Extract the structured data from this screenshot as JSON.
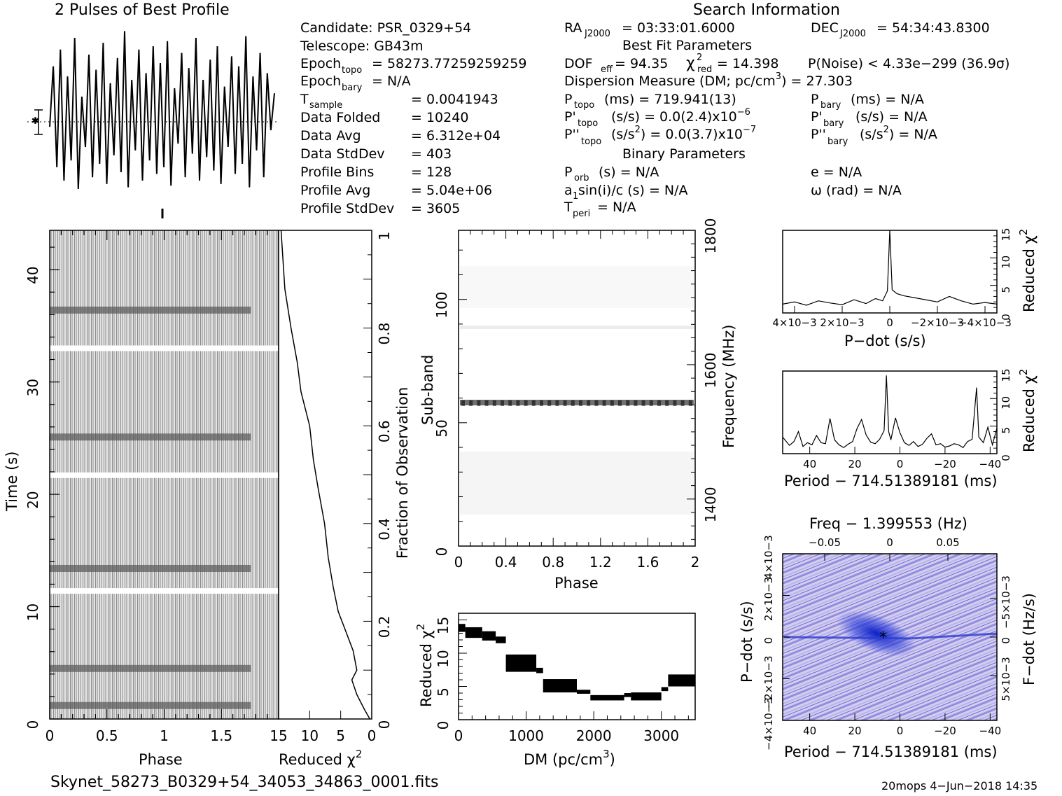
{
  "top": {
    "profile_title": "2 Pulses of Best Profile",
    "search_title": "Search Information"
  },
  "info_left": {
    "candidate": "Candidate:  PSR_0329+54",
    "telescope": "Telescope:  GB43m",
    "epoch_topo_label": "Epoch",
    "epoch_topo_sub": "topo",
    "epoch_topo_value": "= 58273.77259259259",
    "epoch_bary_label": "Epoch",
    "epoch_bary_sub": "bary",
    "epoch_bary_value": "= N/A",
    "t_sample_label": "T",
    "t_sample_sub": "sample",
    "t_sample_value": "=  0.0041943",
    "data_folded_label": "Data Folded",
    "data_folded_value": "=  10240",
    "data_avg_label": "Data Avg",
    "data_avg_value": "=  6.312e+04",
    "data_stddev_label": "Data StdDev",
    "data_stddev_value": "=  403",
    "profile_bins_label": "Profile Bins",
    "profile_bins_value": "=  128",
    "profile_avg_label": "Profile Avg",
    "profile_avg_value": "=  5.04e+06",
    "profile_stddev_label": "Profile StdDev",
    "profile_stddev_value": "=  3605"
  },
  "info_mid": {
    "ra_label": "RA",
    "ra_sub": "J2000",
    "ra_value": "= 03:33:01.6000",
    "best_fit_title": "Best Fit Parameters",
    "dof_label": "DOF",
    "dof_sub": "eff",
    "dof_value": "= 94.35",
    "chi_label": "χ",
    "chi_sup": "2",
    "chi_sub": "red",
    "chi_value": "= 14.398",
    "pnoise": "P(Noise) < 4.33e−299  (36.9σ)",
    "dm_line": "Dispersion Measure (DM; pc/cm",
    "dm_sup": "3",
    "dm_tail": ") = 27.303",
    "ptopo_label": "P",
    "ptopo_sub": "topo",
    "ptopo_value": "(ms) =  719.941(13)",
    "pdtopo_label": "P'",
    "pdtopo_sub": "topo",
    "pdtopo_value": "(s/s) = 0.0(2.4)x10",
    "pdtopo_exp": "−6",
    "pddtopo_label": "P''",
    "pddtopo_sub": "topo",
    "pddtopo_value": "(s/s",
    "pddtopo_sup": "2",
    "pddtopo_tail": ") = 0.0(3.7)x10",
    "pddtopo_exp": "−7",
    "binary_title": "Binary Parameters",
    "porb_label": "P",
    "porb_sub": "orb",
    "porb_value": "(s) = N/A",
    "a1_label": "a",
    "a1_sub": "1",
    "a1_value": "sin(i)/c (s) = N/A",
    "tperi_label": "T",
    "tperi_sub": "peri",
    "tperi_value": "= N/A"
  },
  "info_right": {
    "dec_label": "DEC",
    "dec_sub": "J2000",
    "dec_value": "= 54:34:43.8300",
    "pbary_label": "P",
    "pbary_sub": "bary",
    "pbary_value": "(ms) = N/A",
    "pdbary_label": "P'",
    "pdbary_sub": "bary",
    "pdbary_value": "(s/s) = N/A",
    "pddbary_label": "P''",
    "pddbary_sub": "bary",
    "pddbary_value": "(s/s",
    "pddbary_sup": "2",
    "pddbary_tail": ") = N/A",
    "e_value": "e = N/A",
    "omega_value": "ω (rad) = N/A"
  },
  "footer": {
    "filename": "Skynet_58273_B0329+54_34053_34863_0001.fits",
    "stamp": "20mops  4−Jun−2018 14:35"
  },
  "colors": {
    "ink": "#000000",
    "greyscale_dark": "#202020",
    "pf_blue": "#3344dd",
    "pf_light": "#d8c8f0"
  },
  "chart_data": [
    {
      "type": "line",
      "title": "2 Pulses of Best Profile",
      "xlabel": "",
      "ylabel": "",
      "ylim": [
        0,
        1
      ],
      "note": "pulse profile, two rotations",
      "values": [
        0.42,
        0.78,
        0.18,
        0.88,
        0.1,
        0.72,
        0.22,
        0.95,
        0.05,
        0.6,
        0.3,
        0.85,
        0.12,
        0.76,
        0.2,
        0.92,
        0.08,
        0.68,
        0.25,
        0.83,
        0.15,
        0.99,
        0.06,
        0.7,
        0.28,
        0.88,
        0.1,
        0.74,
        0.22,
        0.9,
        0.14,
        0.8,
        0.18,
        0.93,
        0.07,
        0.65,
        0.32,
        0.86,
        0.12,
        0.77,
        0.26,
        0.95,
        0.1,
        0.7,
        0.24,
        0.82,
        0.16,
        0.9,
        0.08,
        0.66,
        0.3,
        0.84,
        0.14,
        0.78,
        0.2,
        0.96,
        0.06,
        0.72,
        0.28,
        0.86,
        0.12,
        0.74,
        0.4,
        0.62
      ]
    },
    {
      "type": "heatmap",
      "name": "time-phase",
      "xlabel": "Phase",
      "ylabel": "Time (s)",
      "xlim": [
        0,
        2
      ],
      "ylim": [
        0,
        43.5
      ],
      "x_ticks": [
        "0",
        "0.5",
        "1",
        "1.5"
      ],
      "y_ticks": [
        "0",
        "10",
        "20",
        "30",
        "40"
      ],
      "gaps_time_s": [
        11.4,
        21.7,
        33.0
      ],
      "dark_rows_time_s": [
        1.2,
        4.5,
        13.4,
        25.1,
        36.4
      ]
    },
    {
      "type": "line",
      "name": "cumulative reduced chi2",
      "xlabel": "Reduced χ2",
      "ylabel": "Fraction of Observation",
      "xlim": [
        15,
        0
      ],
      "ylim": [
        0,
        1
      ],
      "x_ticks": [
        "15",
        "10",
        "5",
        "0"
      ],
      "y_ticks": [
        "0.2",
        "0.4",
        "0.6",
        "0.8",
        "1"
      ],
      "x": [
        0.3,
        1.2,
        2.4,
        3.2,
        2.4,
        3.0,
        4.2,
        5.4,
        6.2,
        7.0,
        7.6,
        8.6,
        9.4,
        10.0,
        11.4,
        12.0,
        13.0,
        14.0,
        14.3,
        14.6
      ],
      "y": [
        0.0,
        0.02,
        0.05,
        0.08,
        0.1,
        0.14,
        0.18,
        0.22,
        0.27,
        0.33,
        0.4,
        0.47,
        0.53,
        0.6,
        0.67,
        0.73,
        0.8,
        0.88,
        0.94,
        1.0
      ]
    },
    {
      "type": "heatmap",
      "name": "sub-band vs phase",
      "xlabel": "Phase",
      "ylabel": "Sub-band",
      "y2label": "Frequency (MHz)",
      "xlim": [
        0,
        2
      ],
      "ylim": [
        0,
        128
      ],
      "x_ticks": [
        "0",
        "0.4",
        "0.8",
        "1.2",
        "1.6",
        "2"
      ],
      "y_ticks": [
        "0",
        "50",
        "100"
      ],
      "y2_ticks": [
        "1400",
        "1600",
        "1800"
      ],
      "dark_band_subband": 58,
      "light_band_subband": 89
    },
    {
      "type": "line",
      "name": "DM vs reduced chi2",
      "xlabel": "DM (pc/cm3)",
      "ylabel": "Reduced χ2",
      "xlim": [
        0,
        3500
      ],
      "ylim": [
        0,
        16
      ],
      "x_ticks": [
        "0",
        "1000",
        "2000",
        "3000"
      ],
      "y_ticks": [
        "0",
        "5",
        "10",
        "15"
      ],
      "segments": [
        {
          "x0": 0,
          "x1": 100,
          "y": 13.8
        },
        {
          "x0": 100,
          "x1": 350,
          "y": 13.1
        },
        {
          "x0": 350,
          "x1": 550,
          "y": 12.6
        },
        {
          "x0": 550,
          "x1": 700,
          "y": 12.0
        },
        {
          "x0": 700,
          "x1": 1150,
          "y": 8.5
        },
        {
          "x0": 1150,
          "x1": 1250,
          "y": 7.4
        },
        {
          "x0": 1250,
          "x1": 1750,
          "y": 5.1
        },
        {
          "x0": 1750,
          "x1": 1950,
          "y": 4.2
        },
        {
          "x0": 1950,
          "x1": 2450,
          "y": 3.3
        },
        {
          "x0": 2450,
          "x1": 2550,
          "y": 3.7
        },
        {
          "x0": 2550,
          "x1": 3000,
          "y": 3.5
        },
        {
          "x0": 3000,
          "x1": 3100,
          "y": 4.6
        },
        {
          "x0": 3100,
          "x1": 3500,
          "y": 5.9
        }
      ],
      "band_halfwidth": [
        0.6,
        0.8,
        0.7,
        0.5,
        1.3,
        0.4,
        1.0,
        0.3,
        0.4,
        0.3,
        0.6,
        0.3,
        0.9
      ]
    },
    {
      "type": "line",
      "name": "P-dot vs reduced chi2",
      "xlabel": "P−dot (s/s)",
      "ylabel": "Reduced χ2",
      "xlim": [
        0.0045,
        -0.0045
      ],
      "ylim": [
        0,
        15
      ],
      "x_ticks": [
        "4×10−3",
        "2×10−3",
        "0",
        "−2×10−3",
        "−4×10−3"
      ],
      "y_ticks": [
        "0",
        "5",
        "10",
        "15"
      ],
      "x": [
        0.0045,
        0.004,
        0.0035,
        0.003,
        0.0025,
        0.002,
        0.0015,
        0.001,
        0.0006,
        0.0003,
        0.0001,
        0.0,
        -0.0001,
        -0.0003,
        -0.0006,
        -0.001,
        -0.0015,
        -0.002,
        -0.0025,
        -0.003,
        -0.0035,
        -0.004,
        -0.0045
      ],
      "y": [
        1.6,
        2.0,
        1.4,
        2.2,
        1.8,
        1.5,
        2.4,
        1.7,
        2.6,
        2.2,
        4.0,
        15.0,
        4.2,
        3.5,
        3.1,
        2.8,
        2.4,
        2.0,
        3.0,
        2.2,
        1.6,
        1.9,
        1.6
      ]
    },
    {
      "type": "line",
      "name": "Period vs reduced chi2",
      "xlabel": "Period − 714.51389181 (ms)",
      "ylabel": "Reduced χ2",
      "xlim": [
        52,
        -43
      ],
      "ylim": [
        0,
        15
      ],
      "x_ticks": [
        "40",
        "20",
        "0",
        "−20",
        "−40"
      ],
      "y_ticks": [
        "0",
        "5",
        "10",
        "15"
      ],
      "x": [
        52,
        49,
        47,
        45,
        43,
        41,
        39,
        37,
        35,
        33,
        31,
        29,
        27,
        25,
        23,
        21,
        19,
        17,
        15,
        13,
        11,
        9,
        7,
        6,
        5,
        4,
        2,
        0,
        -2,
        -4,
        -6,
        -8,
        -10,
        -12,
        -14,
        -16,
        -18,
        -20,
        -22,
        -24,
        -26,
        -28,
        -30,
        -32,
        -34,
        -35,
        -37,
        -39,
        -41,
        -43
      ],
      "y": [
        3.0,
        1.5,
        2.2,
        4.0,
        1.3,
        2.0,
        1.6,
        3.3,
        2.0,
        1.8,
        6.4,
        2.5,
        1.6,
        1.1,
        1.7,
        2.2,
        4.6,
        6.2,
        3.4,
        2.1,
        1.8,
        2.6,
        4.2,
        14.2,
        4.0,
        2.5,
        6.5,
        3.8,
        2.0,
        1.5,
        2.2,
        1.3,
        1.7,
        2.8,
        3.6,
        1.6,
        1.8,
        1.2,
        1.4,
        1.8,
        1.6,
        1.1,
        2.2,
        2.6,
        12.0,
        3.0,
        2.0,
        4.8,
        1.6,
        4.6
      ]
    },
    {
      "type": "heatmap",
      "name": "Period / P-dot plane",
      "title": "Freq − 1.399553 (Hz)",
      "xlabel": "Period − 714.51389181 (ms)",
      "ylabel": "P−dot (s/s)",
      "y2label": "F−dot (Hz/s)",
      "xlim": [
        52,
        -43
      ],
      "ylim": [
        -0.004,
        0.004
      ],
      "x_ticks": [
        "40",
        "20",
        "0",
        "−20",
        "−40"
      ],
      "top_ticks": [
        "−0.05",
        "0",
        "0.05"
      ],
      "y_ticks": [
        "4×10−3",
        "2×10−3",
        "0",
        "−2×10−3",
        "−4×10−3"
      ],
      "y2_ticks": [
        "−5×10−3",
        "0",
        "5×10−3"
      ],
      "peak": {
        "period": 5,
        "pdot": 0.0
      }
    }
  ]
}
